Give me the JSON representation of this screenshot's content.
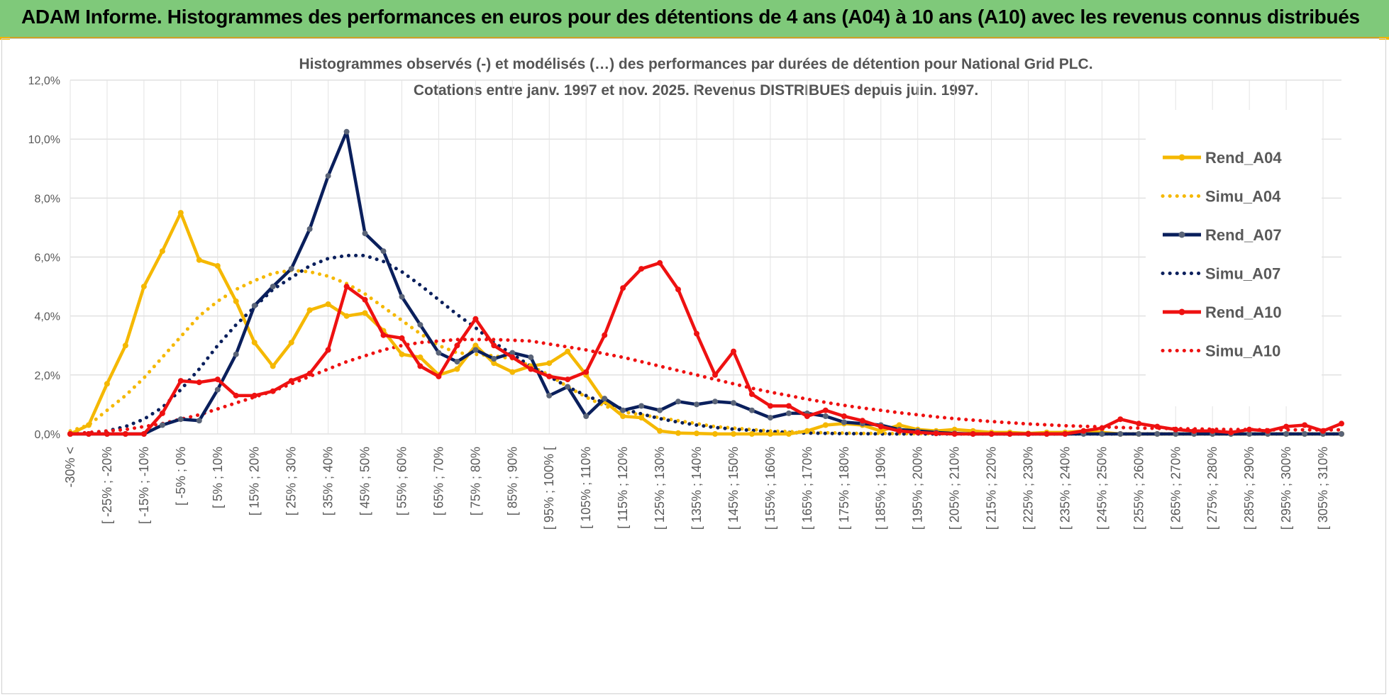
{
  "banner": {
    "title": "ADAM Informe. Histogrammes des performances en euros pour des détentions de 4 ans (A04) à 10 ans (A10) avec les revenus connus distribués"
  },
  "chart_data": {
    "type": "line",
    "title": "Histogrammes observés (-) et modélisés (…) des performances par durées de détention pour National Grid PLC.",
    "subtitle": "Cotations entre janv. 1997 et nov. 2025. Revenus DISTRIBUES depuis juin. 1997.",
    "xlabel": "",
    "ylabel": "",
    "ylim": [
      0,
      12
    ],
    "yticks": [
      "0,0%",
      "2,0%",
      "4,0%",
      "6,0%",
      "8,0%",
      "10,0%",
      "12,0%"
    ],
    "grid": true,
    "legend_position": "right",
    "category_labels": [
      "-30% <",
      "[ -25% ; -20%",
      "[ -15% ; -10%",
      "[ -5% ; 0%",
      "[ 5% ; 10%",
      "[ 15% ; 20%",
      "[ 25% ; 30%",
      "[ 35% ; 40%",
      "[ 45% ; 50%",
      "[ 55% ; 60%",
      "[ 65% ; 70%",
      "[ 75% ; 80%",
      "[ 85% ; 90%",
      "[ 95% ; 100% [",
      "[ 105% ; 110%",
      "[ 115% ; 120%",
      "[ 125% ; 130%",
      "[ 135% ; 140%",
      "[ 145% ; 150%",
      "[ 155% ; 160%",
      "[ 165% ; 170%",
      "[ 175% ; 180%",
      "[ 185% ; 190%",
      "[ 195% ; 200%",
      "[ 205% ; 210%",
      "[ 215% ; 220%",
      "[ 225% ; 230%",
      "[ 235% ; 240%",
      "[ 245% ; 250%",
      "[ 255% ; 260%",
      "[ 265% ; 270%",
      "[ 275% ; 280%",
      "[ 285% ; 290%",
      "[ 295% ; 300%",
      "[ 305% ; 310%"
    ],
    "point_count": 70,
    "series": [
      {
        "name": "Rend_A04",
        "style": "solid",
        "color": "#f5b800",
        "values": [
          0,
          0.3,
          1.7,
          3.0,
          5.0,
          6.2,
          7.5,
          5.9,
          5.7,
          4.5,
          3.1,
          2.3,
          3.1,
          4.2,
          4.4,
          4.0,
          4.1,
          3.5,
          2.7,
          2.6,
          2.0,
          2.2,
          3.0,
          2.4,
          2.1,
          2.3,
          2.4,
          2.8,
          2.0,
          1.1,
          0.6,
          0.55,
          0.1,
          0.03,
          0.02,
          0,
          0,
          0,
          0,
          0,
          0.1,
          0.3,
          0.35,
          0.3,
          0.1,
          0.3,
          0.15,
          0.1,
          0.15,
          0.1,
          0.05,
          0.05,
          0.02,
          0.05,
          0.05,
          0.1,
          0.05,
          0,
          0,
          0,
          0,
          0,
          0,
          0,
          0,
          0,
          0,
          0,
          0,
          0
        ]
      },
      {
        "name": "Simu_A04",
        "style": "dotted",
        "color": "#f5b800",
        "values": [
          0.1,
          0.3,
          0.8,
          1.3,
          1.9,
          2.6,
          3.3,
          4.0,
          4.5,
          4.9,
          5.2,
          5.45,
          5.55,
          5.5,
          5.35,
          5.1,
          4.75,
          4.3,
          3.85,
          3.4,
          3.0,
          2.75,
          2.7,
          2.65,
          2.55,
          2.3,
          2.0,
          1.6,
          1.25,
          0.95,
          0.75,
          0.65,
          0.55,
          0.45,
          0.35,
          0.25,
          0.2,
          0.15,
          0.1,
          0.08,
          0.06,
          0.04,
          0.03,
          0.02,
          0.02,
          0.01,
          0.01,
          0.01,
          0,
          0,
          0,
          0,
          0,
          0,
          0,
          0,
          0,
          0,
          0,
          0,
          0,
          0,
          0,
          0,
          0,
          0,
          0,
          0,
          0,
          0
        ]
      },
      {
        "name": "Rend_A07",
        "style": "solid",
        "color": "#0a1f5c",
        "values": [
          0,
          0,
          0,
          0,
          0,
          0.3,
          0.5,
          0.45,
          1.5,
          2.7,
          4.35,
          5.0,
          5.6,
          6.95,
          8.75,
          10.25,
          6.8,
          6.2,
          4.65,
          3.7,
          2.75,
          2.45,
          2.85,
          2.55,
          2.75,
          2.6,
          1.3,
          1.6,
          0.6,
          1.2,
          0.8,
          0.95,
          0.8,
          1.1,
          1.0,
          1.1,
          1.05,
          0.8,
          0.55,
          0.7,
          0.7,
          0.6,
          0.4,
          0.35,
          0.3,
          0.15,
          0.1,
          0.05,
          0.02,
          0,
          0,
          0,
          0,
          0,
          0,
          0,
          0,
          0,
          0,
          0,
          0,
          0,
          0,
          0,
          0,
          0,
          0,
          0,
          0,
          0
        ]
      },
      {
        "name": "Simu_A07",
        "style": "dotted",
        "color": "#0a1f5c",
        "values": [
          0,
          0.02,
          0.1,
          0.25,
          0.5,
          0.9,
          1.5,
          2.2,
          3.0,
          3.7,
          4.3,
          4.9,
          5.3,
          5.7,
          5.95,
          6.05,
          6.05,
          5.85,
          5.5,
          5.05,
          4.55,
          4.05,
          3.6,
          3.1,
          2.7,
          2.3,
          1.95,
          1.6,
          1.3,
          1.05,
          0.85,
          0.68,
          0.52,
          0.4,
          0.3,
          0.22,
          0.16,
          0.12,
          0.08,
          0.05,
          0.03,
          0.02,
          0.01,
          0.01,
          0,
          0,
          0,
          0,
          0,
          0,
          0,
          0,
          0,
          0,
          0,
          0,
          0,
          0,
          0,
          0,
          0,
          0,
          0,
          0,
          0,
          0,
          0,
          0,
          0,
          0
        ]
      },
      {
        "name": "Rend_A10",
        "style": "solid",
        "color": "#ee1111",
        "values": [
          0,
          0,
          0,
          0,
          0,
          0.7,
          1.8,
          1.75,
          1.85,
          1.3,
          1.3,
          1.45,
          1.8,
          2.05,
          2.85,
          5.0,
          4.55,
          3.35,
          3.25,
          2.3,
          1.95,
          3.0,
          3.9,
          3.0,
          2.6,
          2.2,
          1.95,
          1.85,
          2.1,
          3.35,
          4.95,
          5.6,
          5.8,
          4.9,
          3.4,
          2.0,
          2.8,
          1.35,
          0.95,
          0.95,
          0.6,
          0.8,
          0.6,
          0.45,
          0.25,
          0.1,
          0.05,
          0.02,
          0,
          0,
          0,
          0,
          0,
          0,
          0,
          0.1,
          0.2,
          0.5,
          0.35,
          0.25,
          0.15,
          0.1,
          0.1,
          0.05,
          0.15,
          0.1,
          0.25,
          0.3,
          0.1,
          0.35
        ]
      },
      {
        "name": "Simu_A10",
        "style": "dotted",
        "color": "#ee1111",
        "values": [
          0,
          0.05,
          0.1,
          0.15,
          0.25,
          0.35,
          0.5,
          0.65,
          0.85,
          1.05,
          1.25,
          1.45,
          1.7,
          1.95,
          2.2,
          2.45,
          2.65,
          2.85,
          3.0,
          3.1,
          3.15,
          3.2,
          3.2,
          3.2,
          3.18,
          3.15,
          3.05,
          2.95,
          2.85,
          2.72,
          2.6,
          2.45,
          2.3,
          2.15,
          2.0,
          1.85,
          1.7,
          1.55,
          1.42,
          1.3,
          1.18,
          1.07,
          0.97,
          0.88,
          0.8,
          0.72,
          0.65,
          0.58,
          0.52,
          0.47,
          0.42,
          0.38,
          0.34,
          0.31,
          0.28,
          0.26,
          0.24,
          0.22,
          0.2,
          0.19,
          0.18,
          0.17,
          0.16,
          0.15,
          0.15,
          0.14,
          0.14,
          0.14,
          0.14,
          0.14
        ]
      }
    ]
  }
}
